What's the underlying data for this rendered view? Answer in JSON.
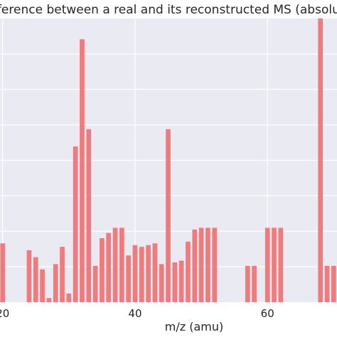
{
  "chart_data": {
    "type": "bar",
    "title": "Difference between a real and its reconstructed MS (absolute)",
    "xlabel": "m/z (amu)",
    "ylabel": "",
    "xlim": [
      19.6,
      70.5
    ],
    "ylim": [
      0,
      0.082
    ],
    "x_ticks": [
      20,
      40,
      60
    ],
    "x_tick_labels": [
      "20",
      "40",
      "60"
    ],
    "grid": true,
    "bar_color": "#f07a7c",
    "plot_background": "#eaeaf2",
    "series": [
      {
        "x": [
          20,
          24,
          25,
          26,
          27,
          28,
          29,
          30,
          31,
          32,
          33,
          34,
          35,
          36,
          37,
          38,
          39,
          40,
          41,
          42,
          43,
          44,
          45,
          46,
          47,
          48,
          49,
          50,
          51,
          52,
          57,
          58,
          60,
          61,
          62,
          68,
          69,
          70
        ],
        "values": [
          0.017,
          0.015,
          0.013,
          0.0095,
          0.0012,
          0.011,
          0.016,
          0.0025,
          0.045,
          0.076,
          0.05,
          0.0105,
          0.0185,
          0.02,
          0.0215,
          0.0215,
          0.0135,
          0.0165,
          0.016,
          0.0165,
          0.017,
          0.011,
          0.05,
          0.0115,
          0.012,
          0.0175,
          0.021,
          0.0215,
          0.0215,
          0.0215,
          0.0105,
          0.0105,
          0.0215,
          0.0215,
          0.0215,
          0.082,
          0.0105,
          0.0105
        ]
      }
    ]
  }
}
